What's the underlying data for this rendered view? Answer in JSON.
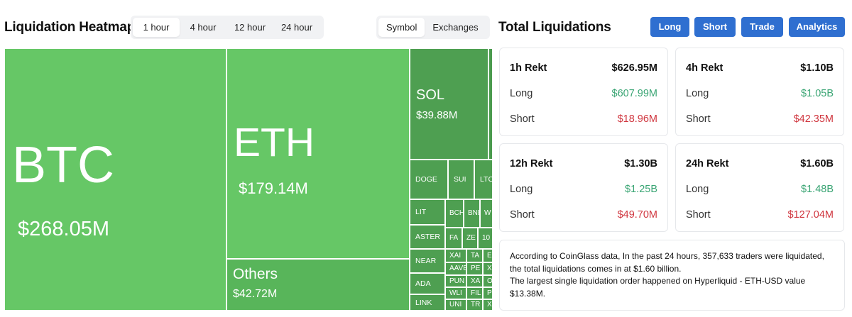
{
  "heatmap": {
    "title": "Liquidation Heatmap",
    "time_tabs": [
      {
        "label": "1 hour",
        "active": true
      },
      {
        "label": "4 hour",
        "active": false
      },
      {
        "label": "12 hour",
        "active": false
      },
      {
        "label": "24 hour",
        "active": false
      }
    ],
    "view_tabs": [
      {
        "label": "Symbol",
        "active": true
      },
      {
        "label": "Exchanges",
        "active": false
      }
    ],
    "tiles": {
      "btc": {
        "symbol": "BTC",
        "amount": "$268.05M"
      },
      "eth": {
        "symbol": "ETH",
        "amount": "$179.14M"
      },
      "others": {
        "symbol": "Others",
        "amount": "$42.72M"
      },
      "sol": {
        "symbol": "SOL",
        "amount": "$39.88M"
      },
      "doge": {
        "symbol": "DOGE"
      },
      "sui": {
        "symbol": "SUI"
      },
      "ltc": {
        "symbol": "LTC"
      },
      "lit": {
        "symbol": "LIT"
      },
      "bch": {
        "symbol": "BCH"
      },
      "bnb": {
        "symbol": "BNB"
      },
      "w": {
        "symbol": "W"
      },
      "aster": {
        "symbol": "ASTER"
      },
      "fa": {
        "symbol": "FA"
      },
      "ze": {
        "symbol": "ZE"
      },
      "n10": {
        "symbol": "10"
      },
      "near": {
        "symbol": "NEAR"
      },
      "xa": {
        "symbol": "XAI"
      },
      "ta": {
        "symbol": "TA"
      },
      "e": {
        "symbol": "E"
      },
      "ada": {
        "symbol": "ADA"
      },
      "aav": {
        "symbol": "AAVE"
      },
      "pe": {
        "symbol": "PE"
      },
      "x1": {
        "symbol": "X"
      },
      "pun": {
        "symbol": "PUN"
      },
      "xa2": {
        "symbol": "XA"
      },
      "o": {
        "symbol": "O"
      },
      "link": {
        "symbol": "LINK"
      },
      "wl": {
        "symbol": "WLI"
      },
      "fil": {
        "symbol": "FIL"
      },
      "p": {
        "symbol": "P"
      },
      "un": {
        "symbol": "UNI"
      },
      "tr": {
        "symbol": "TR"
      },
      "x2": {
        "symbol": "X"
      }
    }
  },
  "totals": {
    "title": "Total Liquidations",
    "buttons": [
      "Long",
      "Short",
      "Trade",
      "Analytics"
    ],
    "cards": [
      {
        "title": "1h Rekt",
        "total": "$626.95M",
        "long_label": "Long",
        "long": "$607.99M",
        "short_label": "Short",
        "short": "$18.96M"
      },
      {
        "title": "4h Rekt",
        "total": "$1.10B",
        "long_label": "Long",
        "long": "$1.05B",
        "short_label": "Short",
        "short": "$42.35M"
      },
      {
        "title": "12h Rekt",
        "total": "$1.30B",
        "long_label": "Long",
        "long": "$1.25B",
        "short_label": "Short",
        "short": "$49.70M"
      },
      {
        "title": "24h Rekt",
        "total": "$1.60B",
        "long_label": "Long",
        "long": "$1.48B",
        "short_label": "Short",
        "short": "$127.04M"
      }
    ],
    "info_line1": "According to CoinGlass data, In the past 24 hours, 357,633 traders were liquidated, the total liquidations comes in at $1.60 billion.",
    "info_line2": "The largest single liquidation order happened on Hyperliquid - ETH-USD value $13.38M."
  },
  "colors": {
    "tile_green": "#66c766",
    "tile_green_dark": "#4e9f51",
    "button_blue": "#2f6fd0",
    "long_green": "#3aa574",
    "short_red": "#d0363f"
  }
}
